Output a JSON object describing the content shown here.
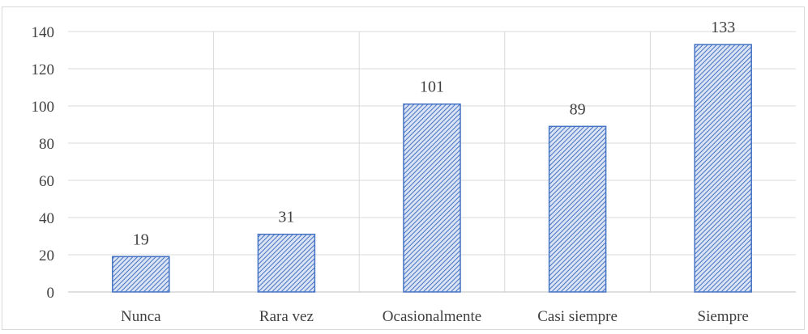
{
  "chart_data": {
    "type": "bar",
    "categories": [
      "Nunca",
      "Rara vez",
      "Ocasionalmente",
      "Casi siempre",
      "Siempre"
    ],
    "values": [
      19,
      31,
      101,
      89,
      133
    ],
    "data_labels": [
      "19",
      "31",
      "101",
      "89",
      "133"
    ],
    "title": "",
    "xlabel": "",
    "ylabel": "",
    "ylim": [
      0,
      140
    ],
    "yticks": [
      0,
      20,
      40,
      60,
      80,
      100,
      120,
      140
    ],
    "grid": true,
    "bar_fill": "hatched-diagonal",
    "colors": {
      "bar_stroke": "#4472c4",
      "bar_hatch": "#4472c4",
      "bar_background": "#dae3f3",
      "grid": "#d9d9d9",
      "axis": "#bfbfbf",
      "text": "#404040"
    }
  }
}
